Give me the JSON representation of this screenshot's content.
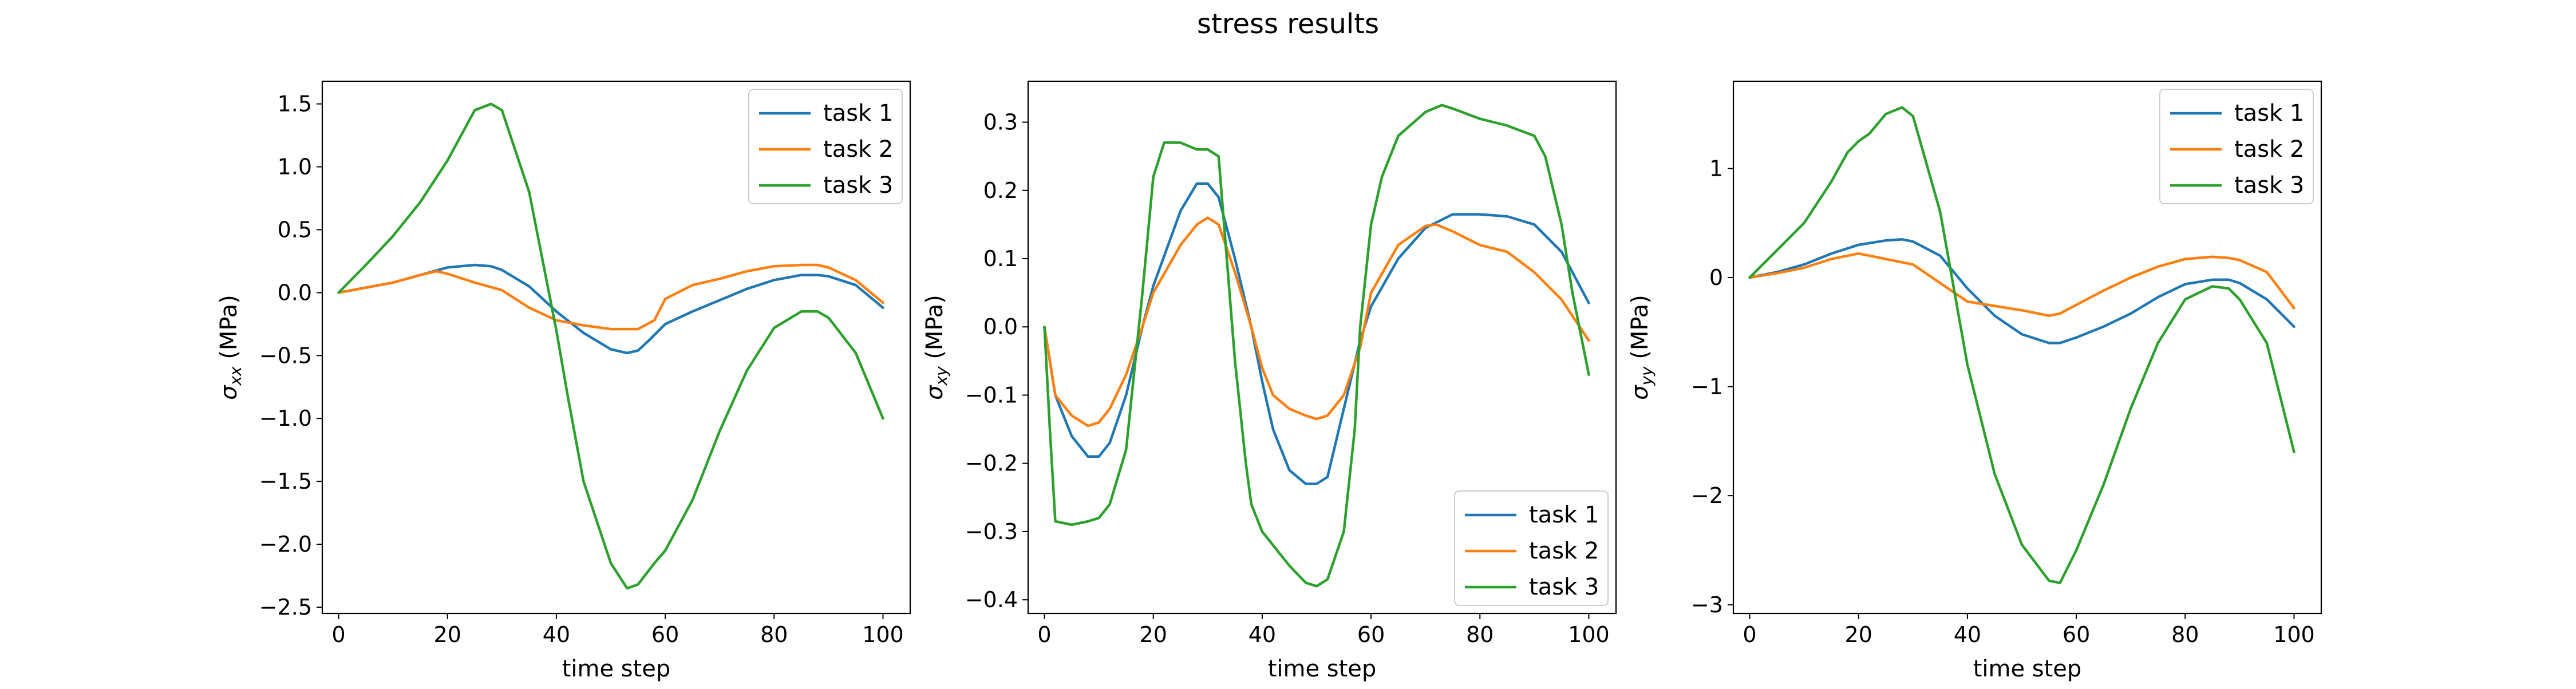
{
  "figure": {
    "title": "stress results"
  },
  "colors": {
    "task 1": "#1f77b4",
    "task 2": "#ff7f0e",
    "task 3": "#2ca02c"
  },
  "chart_data": [
    {
      "type": "line",
      "xlabel": "time step",
      "ylabel_symbol": "σ",
      "ylabel_sub": "xx",
      "ylabel_unit": " (MPa)",
      "xlim": [
        -3,
        105
      ],
      "ylim": [
        -2.55,
        1.68
      ],
      "xticks": [
        0,
        20,
        40,
        60,
        80,
        100
      ],
      "yticks": [
        -2.5,
        -2.0,
        -1.5,
        -1.0,
        -0.5,
        0.0,
        0.5,
        1.0,
        1.5
      ],
      "ytick_labels": [
        "−2.5",
        "−2.0",
        "−1.5",
        "−1.0",
        "−0.5",
        "0.0",
        "0.5",
        "1.0",
        "1.5"
      ],
      "grid": false,
      "legend": "top-right",
      "series": [
        {
          "name": "task 1",
          "x": [
            0,
            5,
            10,
            15,
            20,
            25,
            28,
            30,
            35,
            40,
            45,
            50,
            53,
            55,
            57,
            60,
            65,
            70,
            75,
            80,
            85,
            88,
            90,
            95,
            100
          ],
          "y": [
            0,
            0.04,
            0.08,
            0.14,
            0.2,
            0.22,
            0.21,
            0.18,
            0.05,
            -0.15,
            -0.32,
            -0.45,
            -0.48,
            -0.46,
            -0.38,
            -0.25,
            -0.15,
            -0.06,
            0.03,
            0.1,
            0.14,
            0.14,
            0.13,
            0.06,
            -0.12
          ]
        },
        {
          "name": "task 2",
          "x": [
            0,
            5,
            10,
            15,
            18,
            20,
            25,
            30,
            35,
            40,
            45,
            50,
            55,
            58,
            60,
            65,
            70,
            75,
            80,
            85,
            88,
            90,
            95,
            100
          ],
          "y": [
            0,
            0.04,
            0.08,
            0.14,
            0.17,
            0.15,
            0.08,
            0.02,
            -0.12,
            -0.22,
            -0.26,
            -0.29,
            -0.29,
            -0.22,
            -0.05,
            0.06,
            0.11,
            0.17,
            0.21,
            0.22,
            0.22,
            0.2,
            0.1,
            -0.08
          ]
        },
        {
          "name": "task 3",
          "x": [
            0,
            5,
            10,
            15,
            20,
            25,
            28,
            30,
            35,
            40,
            42,
            45,
            50,
            53,
            55,
            58,
            60,
            65,
            70,
            75,
            80,
            85,
            88,
            90,
            95,
            100
          ],
          "y": [
            0,
            0.22,
            0.45,
            0.72,
            1.05,
            1.45,
            1.5,
            1.45,
            0.8,
            -0.3,
            -0.8,
            -1.5,
            -2.15,
            -2.35,
            -2.32,
            -2.15,
            -2.05,
            -1.65,
            -1.1,
            -0.62,
            -0.28,
            -0.15,
            -0.15,
            -0.2,
            -0.48,
            -1.0
          ]
        }
      ]
    },
    {
      "type": "line",
      "xlabel": "time step",
      "ylabel_symbol": "σ",
      "ylabel_sub": "xy",
      "ylabel_unit": " (MPa)",
      "xlim": [
        -3,
        105
      ],
      "ylim": [
        -0.42,
        0.36
      ],
      "xticks": [
        0,
        20,
        40,
        60,
        80,
        100
      ],
      "yticks": [
        -0.4,
        -0.3,
        -0.2,
        -0.1,
        0.0,
        0.1,
        0.2,
        0.3
      ],
      "ytick_labels": [
        "−0.4",
        "−0.3",
        "−0.2",
        "−0.1",
        "0.0",
        "0.1",
        "0.2",
        "0.3"
      ],
      "grid": false,
      "legend": "bottom-right",
      "series": [
        {
          "name": "task 1",
          "x": [
            0,
            2,
            5,
            8,
            10,
            12,
            15,
            18,
            20,
            25,
            28,
            30,
            32,
            35,
            38,
            40,
            42,
            45,
            48,
            50,
            52,
            55,
            58,
            60,
            65,
            70,
            75,
            80,
            85,
            90,
            95,
            100
          ],
          "y": [
            0,
            -0.1,
            -0.16,
            -0.19,
            -0.19,
            -0.17,
            -0.1,
            0.0,
            0.06,
            0.17,
            0.21,
            0.21,
            0.19,
            0.1,
            0.0,
            -0.08,
            -0.15,
            -0.21,
            -0.23,
            -0.23,
            -0.22,
            -0.12,
            -0.02,
            0.03,
            0.1,
            0.145,
            0.165,
            0.165,
            0.162,
            0.15,
            0.11,
            0.035
          ]
        },
        {
          "name": "task 2",
          "x": [
            0,
            2,
            5,
            8,
            10,
            12,
            15,
            18,
            20,
            25,
            28,
            30,
            32,
            35,
            38,
            40,
            42,
            45,
            48,
            50,
            52,
            55,
            58,
            60,
            65,
            70,
            72,
            75,
            80,
            85,
            90,
            95,
            100
          ],
          "y": [
            0,
            -0.1,
            -0.13,
            -0.145,
            -0.14,
            -0.12,
            -0.07,
            0.0,
            0.05,
            0.12,
            0.15,
            0.16,
            0.15,
            0.08,
            0.0,
            -0.06,
            -0.1,
            -0.12,
            -0.13,
            -0.135,
            -0.13,
            -0.1,
            -0.03,
            0.05,
            0.12,
            0.148,
            0.15,
            0.14,
            0.12,
            0.11,
            0.08,
            0.04,
            -0.02
          ]
        },
        {
          "name": "task 3",
          "x": [
            0,
            1,
            2,
            5,
            8,
            10,
            12,
            15,
            18,
            20,
            22,
            25,
            28,
            30,
            32,
            33,
            35,
            37,
            38,
            40,
            42,
            45,
            48,
            50,
            52,
            55,
            57,
            58,
            60,
            62,
            65,
            70,
            73,
            75,
            80,
            85,
            90,
            92,
            95,
            97,
            100
          ],
          "y": [
            0,
            -0.15,
            -0.285,
            -0.29,
            -0.285,
            -0.28,
            -0.26,
            -0.18,
            0.05,
            0.22,
            0.27,
            0.27,
            0.26,
            0.26,
            0.25,
            0.15,
            -0.05,
            -0.2,
            -0.26,
            -0.3,
            -0.32,
            -0.35,
            -0.375,
            -0.38,
            -0.37,
            -0.3,
            -0.15,
            0.0,
            0.15,
            0.22,
            0.28,
            0.315,
            0.325,
            0.32,
            0.305,
            0.295,
            0.28,
            0.25,
            0.15,
            0.05,
            -0.07
          ]
        }
      ]
    },
    {
      "type": "line",
      "xlabel": "time step",
      "ylabel_symbol": "σ",
      "ylabel_sub": "yy",
      "ylabel_unit": " (MPa)",
      "xlim": [
        -3,
        105
      ],
      "ylim": [
        -3.08,
        1.8
      ],
      "xticks": [
        0,
        20,
        40,
        60,
        80,
        100
      ],
      "yticks": [
        -3,
        -2,
        -1,
        0,
        1
      ],
      "ytick_labels": [
        "−3",
        "−2",
        "−1",
        "0",
        "1"
      ],
      "grid": false,
      "legend": "top-right",
      "series": [
        {
          "name": "task 1",
          "x": [
            0,
            5,
            10,
            15,
            20,
            25,
            28,
            30,
            35,
            40,
            45,
            50,
            55,
            57,
            60,
            65,
            70,
            75,
            80,
            85,
            88,
            90,
            95,
            100
          ],
          "y": [
            0,
            0.05,
            0.12,
            0.22,
            0.3,
            0.34,
            0.35,
            0.33,
            0.2,
            -0.1,
            -0.35,
            -0.52,
            -0.6,
            -0.6,
            -0.55,
            -0.45,
            -0.33,
            -0.18,
            -0.06,
            -0.02,
            -0.02,
            -0.05,
            -0.2,
            -0.45
          ]
        },
        {
          "name": "task 2",
          "x": [
            0,
            5,
            10,
            15,
            20,
            25,
            30,
            35,
            40,
            45,
            50,
            55,
            57,
            60,
            65,
            70,
            75,
            80,
            85,
            88,
            90,
            95,
            100
          ],
          "y": [
            0,
            0.04,
            0.09,
            0.17,
            0.22,
            0.17,
            0.12,
            -0.05,
            -0.22,
            -0.26,
            -0.3,
            -0.35,
            -0.33,
            -0.25,
            -0.12,
            0.0,
            0.1,
            0.17,
            0.19,
            0.18,
            0.16,
            0.05,
            -0.28
          ]
        },
        {
          "name": "task 3",
          "x": [
            0,
            5,
            10,
            15,
            18,
            20,
            22,
            25,
            28,
            30,
            35,
            40,
            45,
            50,
            55,
            57,
            60,
            65,
            70,
            75,
            80,
            85,
            88,
            90,
            95,
            100
          ],
          "y": [
            0,
            0.25,
            0.5,
            0.88,
            1.15,
            1.25,
            1.32,
            1.5,
            1.56,
            1.48,
            0.6,
            -0.8,
            -1.8,
            -2.45,
            -2.78,
            -2.8,
            -2.5,
            -1.9,
            -1.2,
            -0.6,
            -0.2,
            -0.08,
            -0.1,
            -0.2,
            -0.6,
            -1.6
          ]
        }
      ]
    }
  ]
}
